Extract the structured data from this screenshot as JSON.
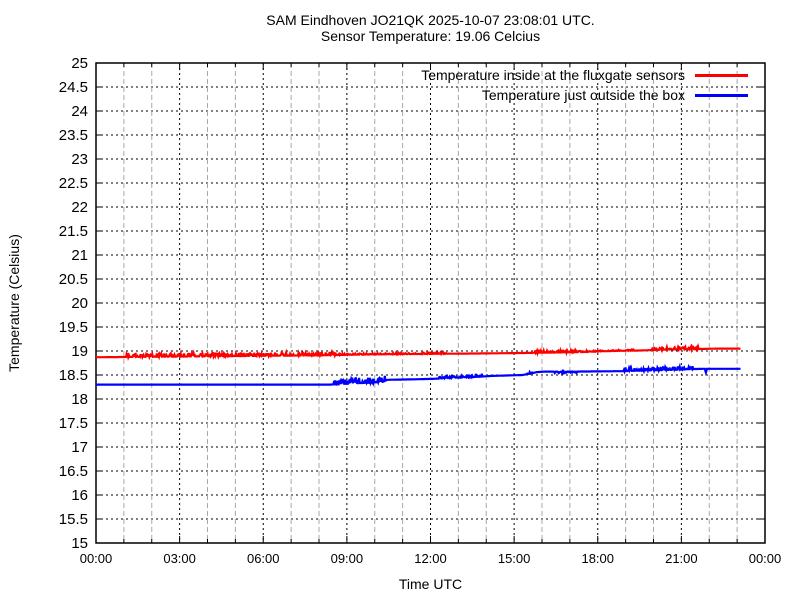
{
  "chart_data": {
    "type": "line",
    "title": "SAM Eindhoven JO21QK 2025-10-07 23:08:01 UTC.",
    "subtitle": "Sensor Temperature: 19.06 Celcius",
    "xlabel": "Time UTC",
    "ylabel": "Temperature (Celsius)",
    "ylim": [
      15,
      25
    ],
    "xlim_hours": [
      0,
      24
    ],
    "t_end_hours": 23.13,
    "y_tick_step": 0.5,
    "y_tick_labels": [
      "15",
      "15.5",
      "16",
      "16.5",
      "17",
      "17.5",
      "18",
      "18.5",
      "19",
      "19.5",
      "20",
      "20.5",
      "21",
      "21.5",
      "22",
      "22.5",
      "23",
      "23.5",
      "24",
      "24.5",
      "25"
    ],
    "x_tick_labels": [
      "00:00",
      "03:00",
      "06:00",
      "09:00",
      "12:00",
      "15:00",
      "18:00",
      "21:00",
      "00:00"
    ],
    "legend_position": "top-right-inside",
    "grid": {
      "background": "#ffffff",
      "border_color": "#000000",
      "h_grid_color": "#000000",
      "v_grid_minor_color": "#a8a8a8",
      "v_grid_major_color": "#000000"
    },
    "series": [
      {
        "name": "Temperature inside at the fluxgate sensors",
        "color": "#ff0000",
        "points": [
          [
            0,
            18.87
          ],
          [
            2,
            18.88
          ],
          [
            4,
            18.89
          ],
          [
            6,
            18.9
          ],
          [
            8,
            18.91
          ],
          [
            10,
            18.93
          ],
          [
            12,
            18.94
          ],
          [
            14,
            18.95
          ],
          [
            15.5,
            18.96
          ],
          [
            16.5,
            18.97
          ],
          [
            17.5,
            18.98
          ],
          [
            18.0,
            18.99
          ],
          [
            18.5,
            19.0
          ],
          [
            19.5,
            19.01
          ],
          [
            20.5,
            19.03
          ],
          [
            21.5,
            19.04
          ],
          [
            22.3,
            19.05
          ],
          [
            23.13,
            19.05
          ]
        ],
        "noise": [
          {
            "from": 1.1,
            "to": 8.6,
            "amp": 0.07
          },
          {
            "from": 8.6,
            "to": 12.6,
            "amp": 0.025
          },
          {
            "from": 15.7,
            "to": 17.6,
            "amp": 0.05
          },
          {
            "from": 17.6,
            "to": 19.3,
            "amp": 0.02
          },
          {
            "from": 19.9,
            "to": 21.6,
            "amp": 0.05
          }
        ]
      },
      {
        "name": "Temperature just outside the box",
        "color": "#0000ff",
        "points": [
          [
            0,
            18.3
          ],
          [
            8.4,
            18.3
          ],
          [
            8.7,
            18.31
          ],
          [
            9.3,
            18.33
          ],
          [
            9.9,
            18.34
          ],
          [
            10.3,
            18.36
          ],
          [
            10.45,
            18.4
          ],
          [
            11.4,
            18.41
          ],
          [
            12.1,
            18.42
          ],
          [
            12.7,
            18.44
          ],
          [
            13.3,
            18.45
          ],
          [
            13.9,
            18.47
          ],
          [
            14.15,
            18.48
          ],
          [
            15.3,
            18.5
          ],
          [
            15.6,
            18.53
          ],
          [
            15.8,
            18.56
          ],
          [
            16.1,
            18.57
          ],
          [
            17.0,
            18.57
          ],
          [
            18.9,
            18.58
          ],
          [
            19.4,
            18.59
          ],
          [
            20.0,
            18.6
          ],
          [
            20.9,
            18.61
          ],
          [
            21.2,
            18.62
          ],
          [
            21.84,
            18.63
          ],
          [
            21.88,
            18.55
          ],
          [
            21.92,
            18.63
          ],
          [
            23.13,
            18.63
          ]
        ],
        "noise": [
          {
            "from": 8.5,
            "to": 10.4,
            "amp": 0.11
          },
          {
            "from": 12.3,
            "to": 13.5,
            "amp": 0.04
          },
          {
            "from": 13.6,
            "to": 13.85,
            "amp": 0.08
          },
          {
            "from": 15.45,
            "to": 15.65,
            "amp": 0.04
          },
          {
            "from": 16.3,
            "to": 17.3,
            "amp": 0.03,
            "dir": -1
          },
          {
            "from": 18.9,
            "to": 21.4,
            "amp": 0.06
          }
        ]
      }
    ]
  }
}
